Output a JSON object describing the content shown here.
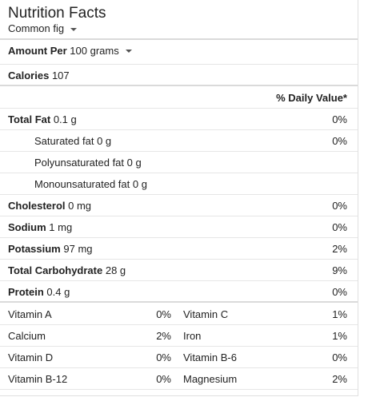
{
  "header": {
    "title": "Nutrition Facts",
    "food": "Common fig"
  },
  "amount": {
    "label": "Amount Per",
    "value": "100 grams"
  },
  "calories": {
    "label": "Calories",
    "value": "107"
  },
  "daily_value_header": "% Daily Value*",
  "nutrients": [
    {
      "label": "Total Fat",
      "amount": "0.1 g",
      "pct": "0%"
    },
    {
      "label": "Saturated fat",
      "amount": "0 g",
      "pct": "0%"
    },
    {
      "label": "Polyunsaturated fat",
      "amount": "0 g",
      "pct": ""
    },
    {
      "label": "Monounsaturated fat",
      "amount": "0 g",
      "pct": ""
    },
    {
      "label": "Cholesterol",
      "amount": "0 mg",
      "pct": "0%"
    },
    {
      "label": "Sodium",
      "amount": "1 mg",
      "pct": "0%"
    },
    {
      "label": "Potassium",
      "amount": "97 mg",
      "pct": "2%"
    },
    {
      "label": "Total Carbohydrate",
      "amount": "28 g",
      "pct": "9%"
    },
    {
      "label": "Protein",
      "amount": "0.4 g",
      "pct": "0%"
    }
  ],
  "vitamins": [
    {
      "left": "Vitamin A",
      "left_pct": "0%",
      "right": "Vitamin C",
      "right_pct": "1%"
    },
    {
      "left": "Calcium",
      "left_pct": "2%",
      "right": "Iron",
      "right_pct": "1%"
    },
    {
      "left": "Vitamin D",
      "left_pct": "0%",
      "right": "Vitamin B-6",
      "right_pct": "0%"
    },
    {
      "left": "Vitamin B-12",
      "left_pct": "0%",
      "right": "Magnesium",
      "right_pct": "2%"
    }
  ]
}
